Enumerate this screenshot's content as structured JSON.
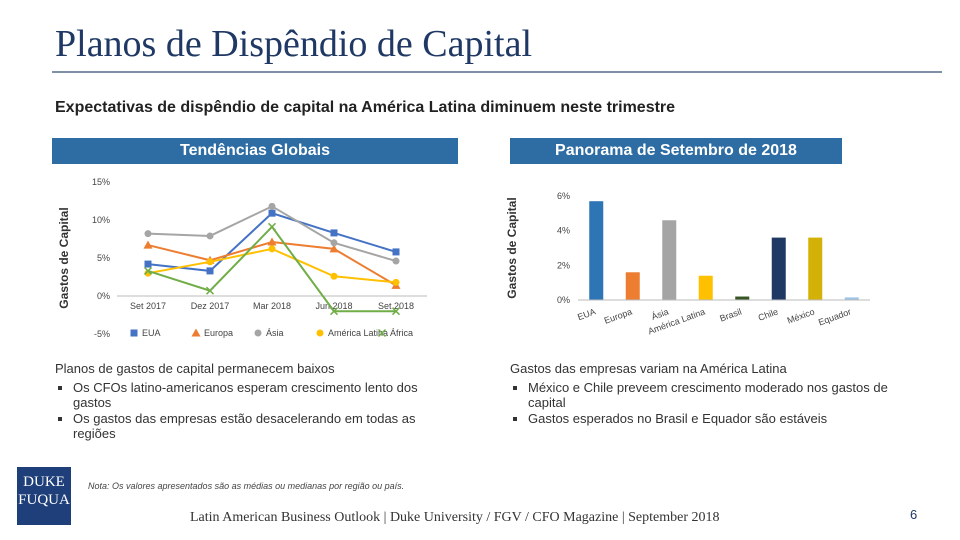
{
  "title": "Planos de Dispêndio de Capital",
  "subtitle": "Expectativas de dispêndio de capital na América Latina diminuem neste trimestre",
  "chart_data": [
    {
      "type": "line",
      "title": "Tendências Globais",
      "y_label": "Gastos de Capital",
      "categories": [
        "Set 2017",
        "Dez 2017",
        "Mar 2018",
        "Jun 2018",
        "Set 2018"
      ],
      "series": [
        {
          "name": "EUA",
          "color": "#4472c4",
          "marker": "square",
          "values": [
            4.2,
            3.3,
            10.9,
            8.3,
            5.8
          ]
        },
        {
          "name": "Europa",
          "color": "#ed7d31",
          "marker": "triangle",
          "values": [
            6.7,
            4.7,
            7.1,
            6.2,
            1.4
          ]
        },
        {
          "name": "Ásia",
          "color": "#a5a5a5",
          "marker": "circle",
          "values": [
            8.2,
            7.9,
            11.8,
            7.0,
            4.6
          ]
        },
        {
          "name": "América Latina",
          "color": "#ffc000",
          "marker": "circle",
          "values": [
            3.0,
            4.5,
            6.2,
            2.6,
            1.8
          ]
        },
        {
          "name": "África",
          "color": "#70ad47",
          "marker": "cross",
          "values": [
            3.3,
            0.7,
            9.1,
            -2.0,
            -2.0
          ]
        }
      ],
      "ylim": [
        -5,
        15
      ],
      "yticks": [
        {
          "value": -5,
          "label": "-5%"
        },
        {
          "value": 0,
          "label": "0%"
        },
        {
          "value": 5,
          "label": "5%"
        },
        {
          "value": 10,
          "label": "10%"
        },
        {
          "value": 15,
          "label": "15%"
        }
      ]
    },
    {
      "type": "bar",
      "title": "Panorama de Setembro de 2018",
      "y_label": "Gastos de Capital",
      "categories": [
        "EUA",
        "Europa",
        "Ásia",
        "América Latina",
        "Brasil",
        "Chile",
        "México",
        "Equador"
      ],
      "values": [
        5.7,
        1.6,
        4.6,
        1.4,
        0.2,
        3.6,
        3.6,
        0.15
      ],
      "colors": [
        "#2e75b6",
        "#ed7d31",
        "#a5a5a5",
        "#ffc000",
        "#375623",
        "#1f3864",
        "#d4b106",
        "#9dc3e6"
      ],
      "ylim": [
        0,
        6
      ],
      "yticks": [
        {
          "value": 0,
          "label": "0%"
        },
        {
          "value": 2,
          "label": "2%"
        },
        {
          "value": 4,
          "label": "4%"
        },
        {
          "value": 6,
          "label": "6%"
        }
      ]
    }
  ],
  "left_text": {
    "heading": "Planos de gastos de capital permanecem baixos",
    "bullets": [
      "Os CFOs latino-americanos esperam crescimento lento dos gastos",
      "Os gastos das empresas estão desacelerando em todas as regiões"
    ]
  },
  "right_text": {
    "heading": "Gastos das empresas variam na América Latina",
    "bullets": [
      "México e Chile preveem crescimento moderado nos gastos de capital",
      "Gastos esperados no Brasil e Equador são estáveis"
    ]
  },
  "note": "Nota: Os valores apresentados são as médias ou medianas por região ou país.",
  "footer": "Latin American Business Outlook | Duke University / FGV / CFO Magazine | September 2018",
  "page_number": 6,
  "logo": {
    "line1": "DUKE",
    "line2": "FUQUA"
  }
}
